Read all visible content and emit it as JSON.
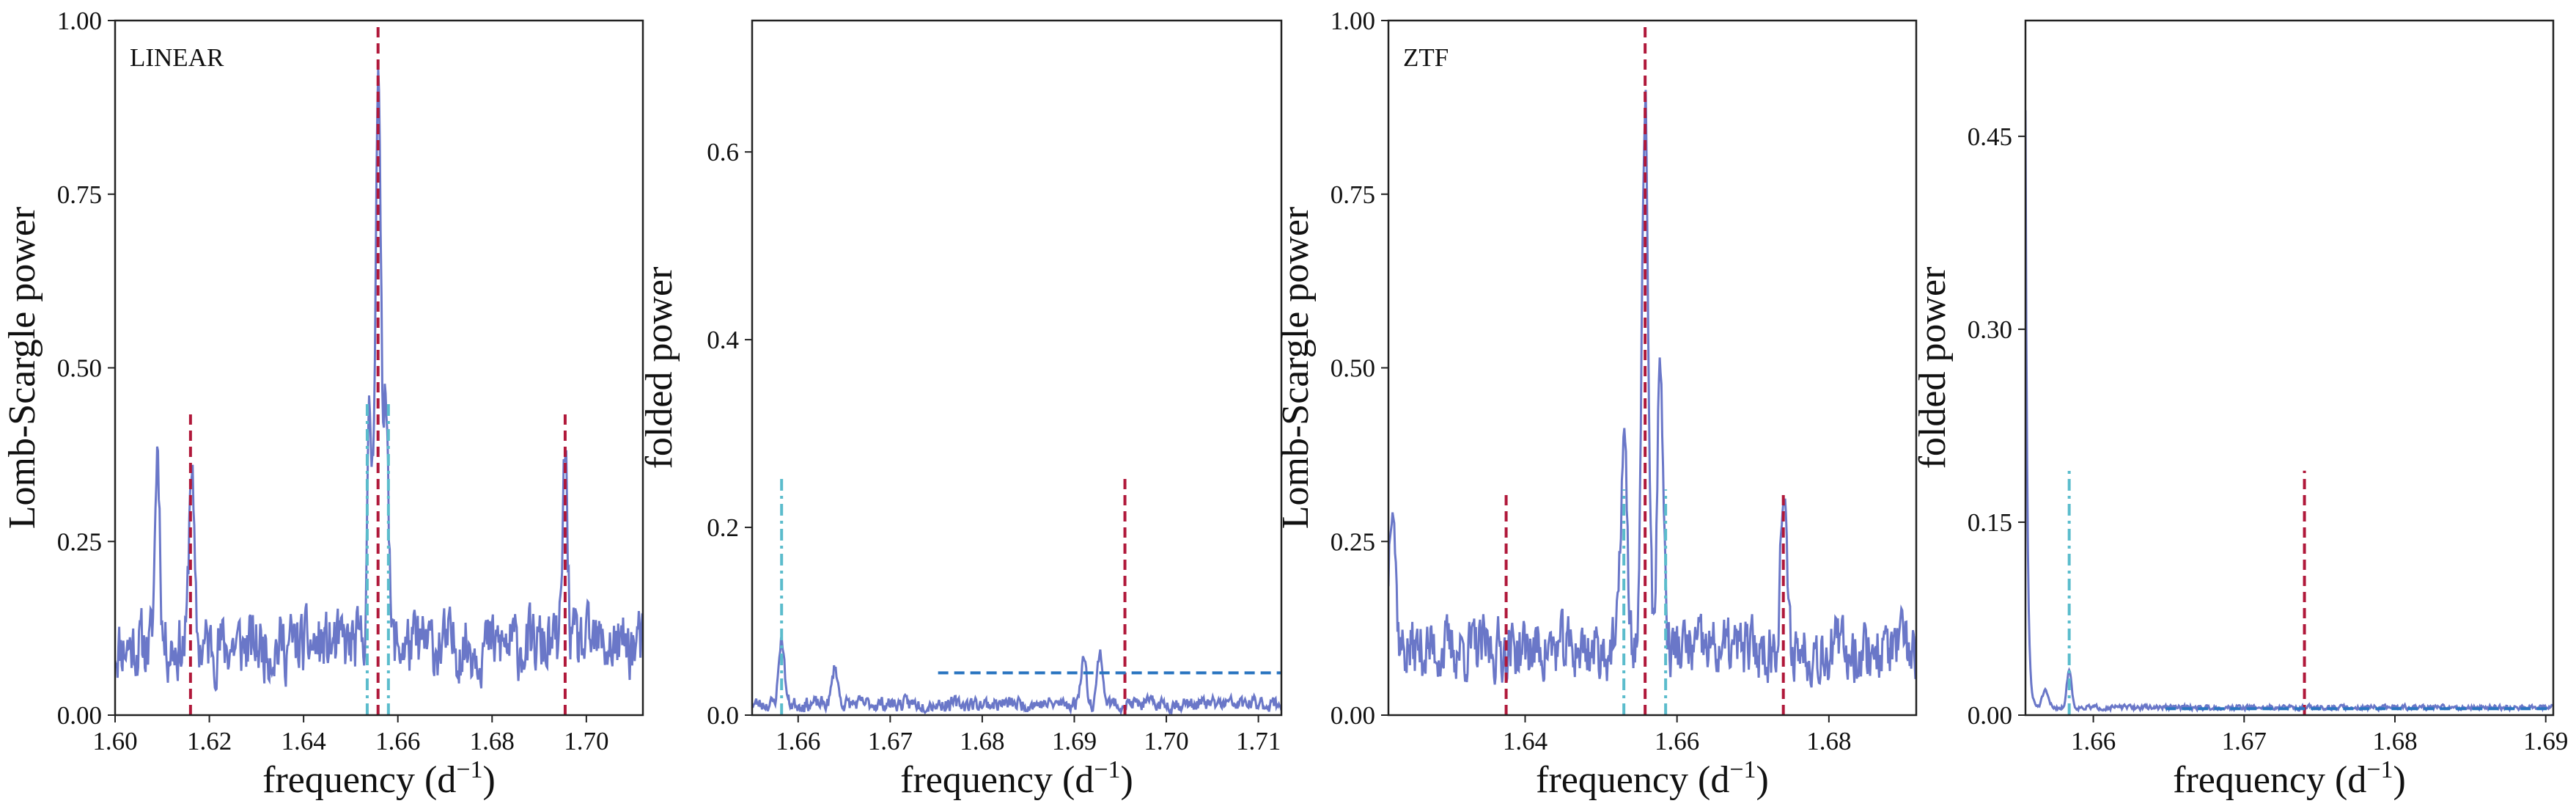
{
  "colors": {
    "periodogram": "#6a77c8",
    "red_dashed": "#b0183a",
    "cyan_dashdot": "#5bbccc",
    "blue_dashed": "#2a75c0",
    "axes": "#222222"
  },
  "chart_data": [
    {
      "type": "line",
      "annotation": "LINEAR",
      "xlabel": "frequency (d",
      "xlabel_sup": "−1",
      "xlabel_tail": ")",
      "ylabel": "Lomb-Scargle power",
      "xlim": [
        1.6,
        1.712
      ],
      "ylim": [
        0,
        1.0
      ],
      "xticks": [
        1.6,
        1.62,
        1.64,
        1.66,
        1.68,
        1.7
      ],
      "xtick_labels": [
        "1.60",
        "1.62",
        "1.64",
        "1.66",
        "1.68",
        "1.70"
      ],
      "yticks": [
        0,
        0.25,
        0.5,
        0.75,
        1.0
      ],
      "ytick_labels": [
        "0.00",
        "0.25",
        "0.50",
        "0.75",
        "1.00"
      ],
      "series_noise": {
        "base": 0.1,
        "amp": 0.075,
        "seed": 11
      },
      "series_peaks": [
        {
          "x": 1.6558,
          "h": 0.82,
          "w": 0.0006
        },
        {
          "x": 1.6575,
          "h": 0.38,
          "w": 0.0005
        },
        {
          "x": 1.654,
          "h": 0.31,
          "w": 0.0005
        },
        {
          "x": 1.6955,
          "h": 0.28,
          "w": 0.0005
        },
        {
          "x": 1.6162,
          "h": 0.27,
          "w": 0.0005
        },
        {
          "x": 1.609,
          "h": 0.29,
          "w": 0.0005
        }
      ],
      "vlines": [
        {
          "x": 1.6558,
          "ymax": 1.0,
          "style": "red_dashed"
        },
        {
          "x": 1.616,
          "ymax": 0.44,
          "style": "red_dashed"
        },
        {
          "x": 1.6955,
          "ymax": 0.44,
          "style": "red_dashed"
        },
        {
          "x": 1.6535,
          "ymax": 0.45,
          "style": "cyan_dashdot"
        },
        {
          "x": 1.658,
          "ymax": 0.45,
          "style": "cyan_dashdot"
        }
      ],
      "hlines": []
    },
    {
      "type": "line",
      "annotation": "",
      "xlabel": "frequency (d",
      "xlabel_sup": "−1",
      "xlabel_tail": ")",
      "ylabel": "folded power",
      "xlim": [
        1.655,
        1.7125
      ],
      "ylim": [
        0,
        0.74
      ],
      "xticks": [
        1.66,
        1.67,
        1.68,
        1.69,
        1.7,
        1.71
      ],
      "xtick_labels": [
        "1.66",
        "1.67",
        "1.68",
        "1.69",
        "1.70",
        "1.71"
      ],
      "yticks": [
        0,
        0.2,
        0.4,
        0.6
      ],
      "ytick_labels": [
        "0.0",
        "0.2",
        "0.4",
        "0.6"
      ],
      "series_noise": {
        "base": 0.012,
        "amp": 0.012,
        "seed": 23
      },
      "series_peaks": [
        {
          "x": 1.6582,
          "h": 0.07,
          "w": 0.0003
        },
        {
          "x": 1.691,
          "h": 0.05,
          "w": 0.0003
        },
        {
          "x": 1.6928,
          "h": 0.055,
          "w": 0.0003
        },
        {
          "x": 1.664,
          "h": 0.04,
          "w": 0.0003
        }
      ],
      "vlines": [
        {
          "x": 1.6582,
          "ymax": 0.255,
          "style": "cyan_dashdot"
        },
        {
          "x": 1.6955,
          "ymax": 0.255,
          "style": "red_dashed"
        }
      ],
      "hlines": [
        {
          "y": 0.045,
          "xmin": 1.6752,
          "xmax": 1.7125,
          "style": "blue_dashed"
        }
      ]
    },
    {
      "type": "line",
      "annotation": "ZTF",
      "xlabel": "frequency (d",
      "xlabel_sup": "−1",
      "xlabel_tail": ")",
      "ylabel": "Lomb-Scargle power",
      "xlim": [
        1.622,
        1.6915
      ],
      "ylim": [
        0,
        1.0
      ],
      "xticks": [
        1.64,
        1.66,
        1.68
      ],
      "xtick_labels": [
        "1.64",
        "1.66",
        "1.68"
      ],
      "yticks": [
        0,
        0.25,
        0.5,
        0.75,
        1.0
      ],
      "ytick_labels": [
        "0.00",
        "0.25",
        "0.50",
        "0.75",
        "1.00"
      ],
      "series_noise": {
        "base": 0.095,
        "amp": 0.07,
        "seed": 37
      },
      "series_peaks": [
        {
          "x": 1.6558,
          "h": 0.8,
          "w": 0.0004
        },
        {
          "x": 1.6578,
          "h": 0.41,
          "w": 0.0004
        },
        {
          "x": 1.653,
          "h": 0.31,
          "w": 0.0004
        },
        {
          "x": 1.6225,
          "h": 0.24,
          "w": 0.0004
        },
        {
          "x": 1.674,
          "h": 0.22,
          "w": 0.0004
        }
      ],
      "vlines": [
        {
          "x": 1.6558,
          "ymax": 1.0,
          "style": "red_dashed"
        },
        {
          "x": 1.6375,
          "ymax": 0.325,
          "style": "red_dashed"
        },
        {
          "x": 1.674,
          "ymax": 0.325,
          "style": "red_dashed"
        },
        {
          "x": 1.653,
          "ymax": 0.325,
          "style": "cyan_dashdot"
        },
        {
          "x": 1.6585,
          "ymax": 0.325,
          "style": "cyan_dashdot"
        }
      ],
      "hlines": []
    },
    {
      "type": "line",
      "annotation": "",
      "xlabel": "frequency (d",
      "xlabel_sup": "−1",
      "xlabel_tail": ")",
      "ylabel": "folded power",
      "xlim": [
        1.6555,
        1.6905
      ],
      "ylim": [
        0,
        0.54
      ],
      "xticks": [
        1.66,
        1.67,
        1.68,
        1.69
      ],
      "xtick_labels": [
        "1.66",
        "1.67",
        "1.68",
        "1.69"
      ],
      "yticks": [
        0,
        0.15,
        0.3,
        0.45
      ],
      "ytick_labels": [
        "0.00",
        "0.15",
        "0.30",
        "0.45"
      ],
      "series_decay": {
        "x0": 1.6555,
        "h": 0.465,
        "tau": 0.00012,
        "base": 0.004
      },
      "series_noise": {
        "base": 0.002,
        "amp": 0.003,
        "seed": 51
      },
      "series_peaks": [
        {
          "x": 1.6584,
          "h": 0.03,
          "w": 0.00015
        },
        {
          "x": 1.6568,
          "h": 0.012,
          "w": 0.0002
        }
      ],
      "vlines": [
        {
          "x": 1.6584,
          "ymax": 0.19,
          "style": "cyan_dashdot"
        },
        {
          "x": 1.674,
          "ymax": 0.19,
          "style": "red_dashed"
        }
      ],
      "hlines": [
        {
          "y": 0.005,
          "xmin": 1.6648,
          "xmax": 1.6905,
          "style": "blue_dashed"
        }
      ]
    }
  ]
}
